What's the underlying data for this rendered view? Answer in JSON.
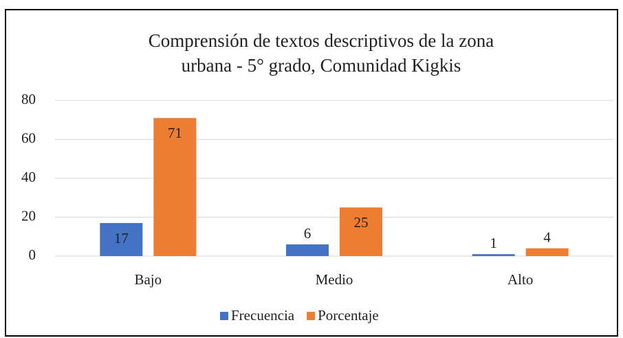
{
  "chart_data": {
    "type": "bar",
    "title": [
      "Comprensión de textos descriptivos de la zona",
      "urbana - 5° grado, Comunidad  Kigkis"
    ],
    "categories": [
      "Bajo",
      "Medio",
      "Alto"
    ],
    "series": [
      {
        "name": "Frecuencia",
        "color": "#4472c4",
        "values": [
          17,
          6,
          1
        ]
      },
      {
        "name": "Porcentaje",
        "color": "#ed7d31",
        "values": [
          71,
          25,
          4
        ]
      }
    ],
    "ylim": [
      0,
      80
    ],
    "yticks": [
      0,
      20,
      40,
      60,
      80
    ],
    "grid": true,
    "legend": "bottom"
  }
}
